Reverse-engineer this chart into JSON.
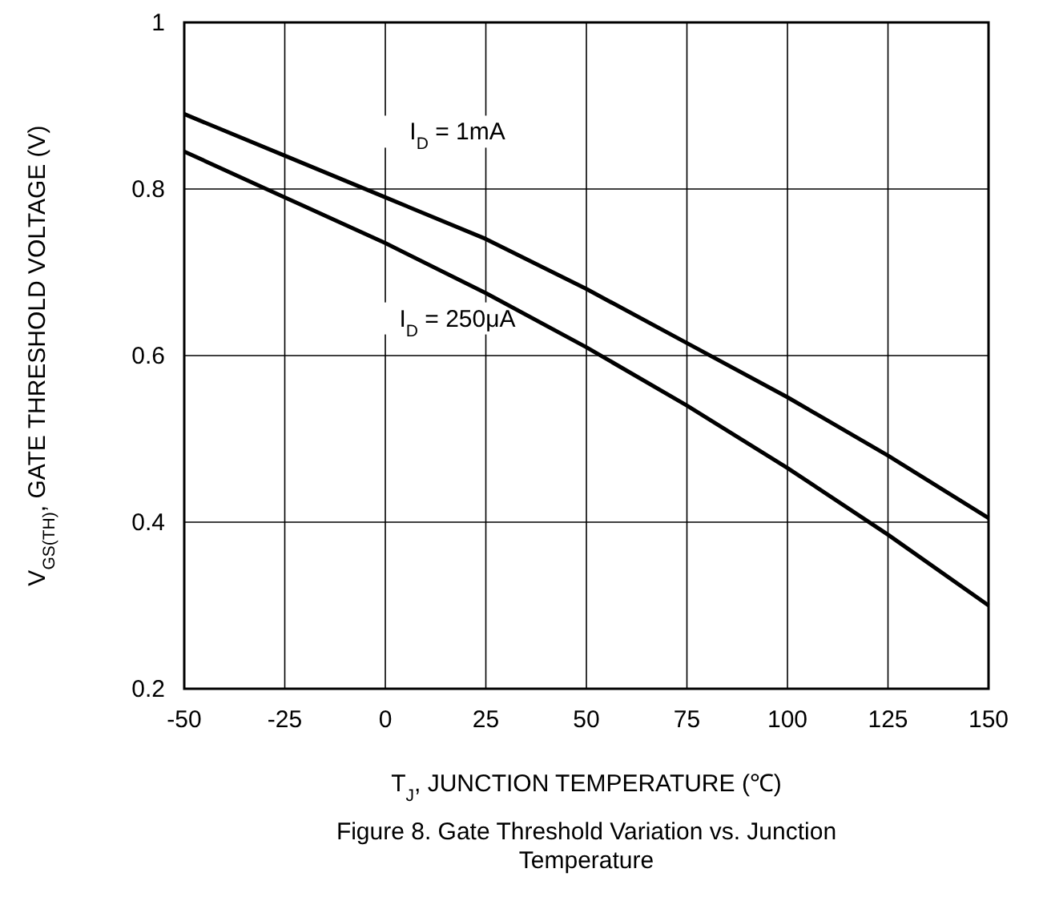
{
  "chart_data": {
    "type": "line",
    "xlabel": "T$_{J}$, JUNCTION TEMPERATURE (℃)",
    "ylabel": "V$_{GS(TH)}$, GATE THRESHOLD VOLTAGE (V)",
    "x": [
      -50,
      -25,
      0,
      25,
      50,
      75,
      100,
      125,
      150
    ],
    "series": [
      {
        "name": "I$_{D}$ = 1mA",
        "color": "#000000",
        "values": [
          0.89,
          0.84,
          0.79,
          0.74,
          0.68,
          0.615,
          0.55,
          0.48,
          0.405
        ]
      },
      {
        "name": "I$_{D}$ = 250μA",
        "color": "#000000",
        "values": [
          0.845,
          0.79,
          0.735,
          0.675,
          0.61,
          0.54,
          0.465,
          0.385,
          0.3
        ]
      }
    ],
    "xlim": [
      -50,
      150
    ],
    "ylim": [
      0.2,
      1
    ],
    "xticks": [
      -50,
      -25,
      0,
      25,
      50,
      75,
      100,
      125,
      150
    ],
    "yticks": [
      0.2,
      0.4,
      0.6,
      0.8,
      1
    ],
    "grid": true,
    "line_style": "solid",
    "marker": "none",
    "annotations": [
      "Figure 8. Gate Threshold Variation vs. Junction Temperature"
    ]
  }
}
